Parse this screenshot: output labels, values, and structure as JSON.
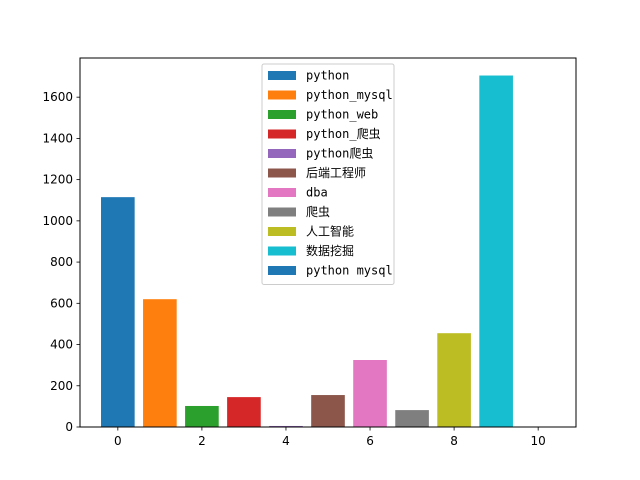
{
  "chart_data": {
    "type": "bar",
    "x": [
      0,
      1,
      2,
      3,
      4,
      5,
      6,
      7,
      8,
      9,
      10
    ],
    "values": [
      1115,
      620,
      102,
      145,
      5,
      155,
      325,
      82,
      455,
      1705,
      0
    ],
    "series": [
      {
        "name": "python",
        "color": "#1f77b4"
      },
      {
        "name": "python_mysql",
        "color": "#ff7f0e"
      },
      {
        "name": "python_web",
        "color": "#2ca02c"
      },
      {
        "name": "python_爬虫",
        "color": "#d62728"
      },
      {
        "name": "python爬虫",
        "color": "#9467bd"
      },
      {
        "name": "后端工程师",
        "color": "#8c564b"
      },
      {
        "name": "dba",
        "color": "#e377c2"
      },
      {
        "name": "爬虫",
        "color": "#7f7f7f"
      },
      {
        "name": "人工智能",
        "color": "#bcbd22"
      },
      {
        "name": "数据挖掘",
        "color": "#17becf"
      },
      {
        "name": "python mysql",
        "color": "#1f77b4"
      }
    ],
    "xticks": [
      0,
      2,
      4,
      6,
      8,
      10
    ],
    "yticks": [
      0,
      200,
      400,
      600,
      800,
      1000,
      1200,
      1400,
      1600
    ],
    "xlim": [
      -0.9,
      10.9
    ],
    "ylim": [
      0,
      1790
    ],
    "title": "",
    "xlabel": "",
    "ylabel": "",
    "grid": false,
    "legend_position": "upper-center"
  }
}
